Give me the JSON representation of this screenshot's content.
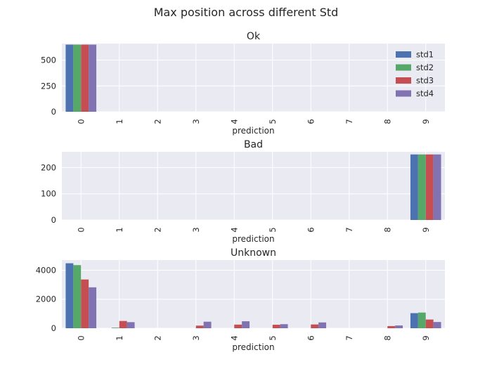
{
  "chart_data": {
    "type": "bar",
    "title": "Max position across different Std",
    "legend_position": "top-right",
    "series_names": [
      "std1",
      "std2",
      "std3",
      "std4"
    ],
    "colors": [
      "#4c72b0",
      "#55a868",
      "#c44e52",
      "#8172b2"
    ],
    "grid": true,
    "panels": [
      {
        "title": "Ok",
        "xlabel": "prediction",
        "categories": [
          "0",
          "1",
          "2",
          "3",
          "4",
          "5",
          "6",
          "7",
          "8",
          "9"
        ],
        "ylim": [
          0,
          660
        ],
        "yticks": [
          0,
          250,
          500
        ],
        "show_legend": true,
        "series": [
          {
            "name": "std1",
            "values": [
              650,
              0,
              0,
              0,
              0,
              0,
              0,
              0,
              0,
              0
            ]
          },
          {
            "name": "std2",
            "values": [
              650,
              0,
              0,
              0,
              0,
              0,
              0,
              0,
              0,
              0
            ]
          },
          {
            "name": "std3",
            "values": [
              650,
              0,
              0,
              0,
              0,
              0,
              0,
              0,
              0,
              0
            ]
          },
          {
            "name": "std4",
            "values": [
              650,
              0,
              0,
              0,
              0,
              0,
              0,
              0,
              0,
              0
            ]
          }
        ]
      },
      {
        "title": "Bad",
        "xlabel": "prediction",
        "categories": [
          "0",
          "1",
          "2",
          "3",
          "4",
          "5",
          "6",
          "7",
          "8",
          "9"
        ],
        "ylim": [
          0,
          260
        ],
        "yticks": [
          0,
          100,
          200
        ],
        "show_legend": false,
        "series": [
          {
            "name": "std1",
            "values": [
              0,
              0,
              0,
              0,
              0,
              0,
              0,
              0,
              0,
              250
            ]
          },
          {
            "name": "std2",
            "values": [
              0,
              0,
              0,
              0,
              0,
              0,
              0,
              0,
              0,
              250
            ]
          },
          {
            "name": "std3",
            "values": [
              0,
              0,
              0,
              0,
              0,
              0,
              0,
              0,
              0,
              250
            ]
          },
          {
            "name": "std4",
            "values": [
              0,
              0,
              0,
              0,
              0,
              0,
              0,
              0,
              0,
              250
            ]
          }
        ]
      },
      {
        "title": "Unknown",
        "xlabel": "prediction",
        "categories": [
          "0",
          "1",
          "2",
          "3",
          "4",
          "5",
          "6",
          "7",
          "8",
          "9"
        ],
        "ylim": [
          0,
          4700
        ],
        "yticks": [
          0,
          2000,
          4000
        ],
        "show_legend": false,
        "series": [
          {
            "name": "std1",
            "values": [
              4480,
              0,
              0,
              0,
              0,
              0,
              0,
              0,
              0,
              1040
            ]
          },
          {
            "name": "std2",
            "values": [
              4350,
              40,
              0,
              0,
              0,
              0,
              0,
              0,
              0,
              1080
            ]
          },
          {
            "name": "std3",
            "values": [
              3360,
              500,
              0,
              180,
              250,
              240,
              260,
              0,
              150,
              600
            ]
          },
          {
            "name": "std4",
            "values": [
              2820,
              420,
              0,
              450,
              480,
              280,
              400,
              0,
              190,
              430
            ]
          }
        ]
      }
    ]
  }
}
